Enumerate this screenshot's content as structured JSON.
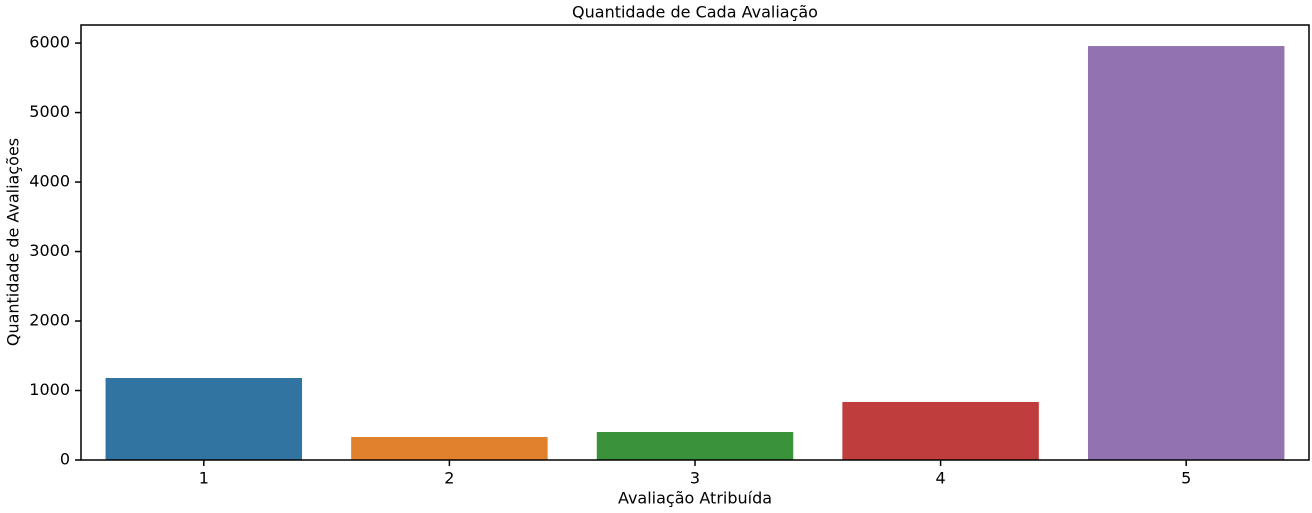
{
  "chart_data": {
    "type": "bar",
    "title": "Quantidade de Cada Avaliação",
    "x_label": "Avaliação Atribuída",
    "y_label": "Quantidade de Avaliações",
    "categories": [
      "1",
      "2",
      "3",
      "4",
      "5"
    ],
    "values": [
      1180,
      331,
      403,
      835,
      5957
    ],
    "colors": [
      "#3274a1",
      "#e1812c",
      "#3a923a",
      "#c03d3e",
      "#9372b2"
    ],
    "ylim": [
      0,
      6260
    ],
    "yticks": [
      0,
      1000,
      2000,
      3000,
      4000,
      5000,
      6000
    ],
    "grid": false
  }
}
